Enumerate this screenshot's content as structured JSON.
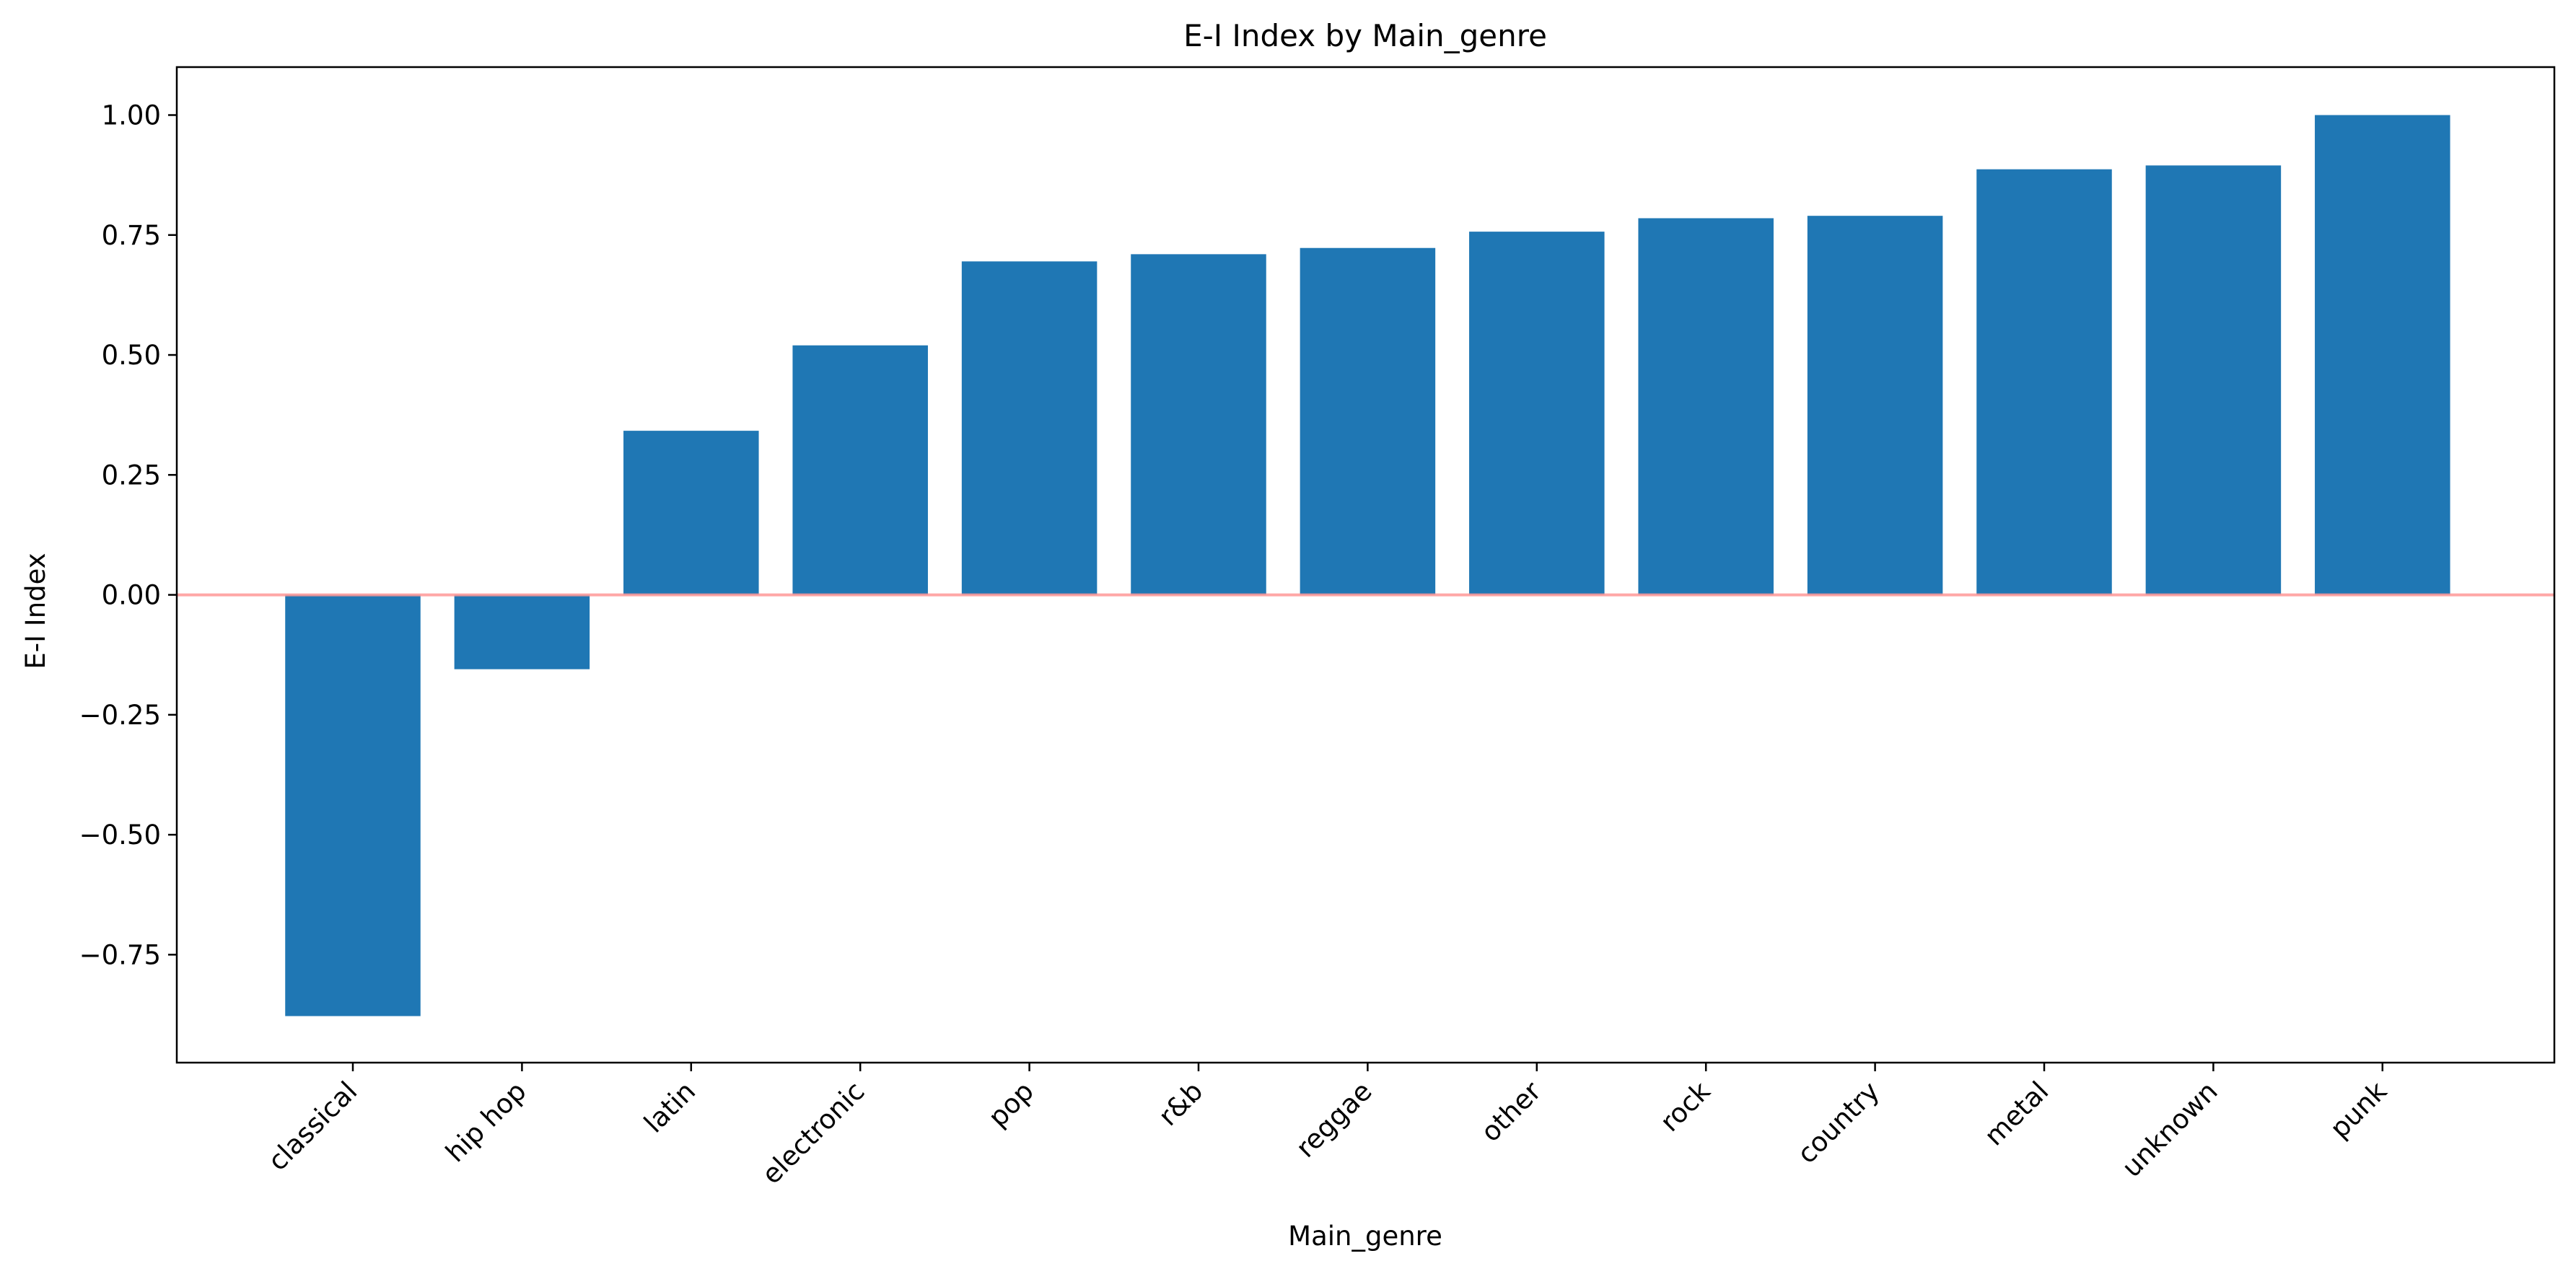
{
  "chart_data": {
    "type": "bar",
    "title": "E-I Index by Main_genre",
    "xlabel": "Main_genre",
    "ylabel": "E-I Index",
    "categories": [
      "classical",
      "hip hop",
      "latin",
      "electronic",
      "pop",
      "r&b",
      "reggae",
      "other",
      "rock",
      "country",
      "metal",
      "unknown",
      "punk"
    ],
    "values": [
      -0.878,
      -0.155,
      0.342,
      0.52,
      0.695,
      0.71,
      0.723,
      0.757,
      0.785,
      0.79,
      0.887,
      0.895,
      1.0
    ],
    "yticks": [
      -0.75,
      -0.5,
      -0.25,
      0.0,
      0.25,
      0.5,
      0.75,
      1.0
    ],
    "ytick_labels": [
      "−0.75",
      "−0.50",
      "−0.25",
      "0.00",
      "0.25",
      "0.50",
      "0.75",
      "1.00"
    ],
    "ylim": [
      -0.975,
      1.1
    ],
    "grid": false,
    "legend": "none",
    "bar_color": "#1f77b4",
    "reference_line": {
      "y": 0.0,
      "color": "#ff9896"
    }
  }
}
